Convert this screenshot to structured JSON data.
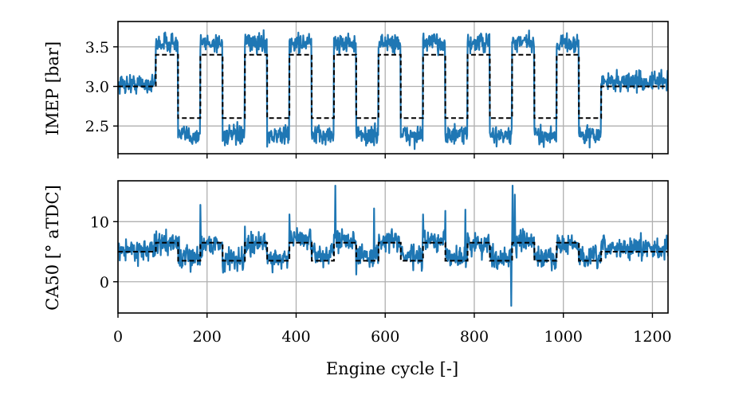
{
  "chart_data": [
    {
      "type": "line",
      "panel": "top",
      "ylabel": "IMEP [bar]",
      "xlim": [
        0,
        1235
      ],
      "ylim": [
        2.15,
        3.82
      ],
      "yticks": [
        2.5,
        3.0,
        3.5
      ],
      "ytick_labels": [
        "2.5",
        "3.0",
        "3.5"
      ],
      "xticks": [
        0,
        200,
        400,
        600,
        800,
        1000,
        1200
      ],
      "grid": true,
      "series": [
        {
          "role": "reference",
          "color": "#000000",
          "style": "dashed",
          "steps": [
            {
              "x0": 0,
              "x1": 85,
              "y": 3.0
            },
            {
              "x0": 85,
              "x1": 135,
              "y": 3.4
            },
            {
              "x0": 135,
              "x1": 185,
              "y": 2.6
            },
            {
              "x0": 185,
              "x1": 235,
              "y": 3.4
            },
            {
              "x0": 235,
              "x1": 285,
              "y": 2.6
            },
            {
              "x0": 285,
              "x1": 335,
              "y": 3.4
            },
            {
              "x0": 335,
              "x1": 385,
              "y": 2.6
            },
            {
              "x0": 385,
              "x1": 435,
              "y": 3.4
            },
            {
              "x0": 435,
              "x1": 485,
              "y": 2.6
            },
            {
              "x0": 485,
              "x1": 535,
              "y": 3.4
            },
            {
              "x0": 535,
              "x1": 585,
              "y": 2.6
            },
            {
              "x0": 585,
              "x1": 635,
              "y": 3.4
            },
            {
              "x0": 635,
              "x1": 685,
              "y": 2.6
            },
            {
              "x0": 685,
              "x1": 735,
              "y": 3.4
            },
            {
              "x0": 735,
              "x1": 785,
              "y": 2.6
            },
            {
              "x0": 785,
              "x1": 835,
              "y": 3.4
            },
            {
              "x0": 835,
              "x1": 885,
              "y": 2.6
            },
            {
              "x0": 885,
              "x1": 935,
              "y": 3.4
            },
            {
              "x0": 935,
              "x1": 985,
              "y": 2.6
            },
            {
              "x0": 985,
              "x1": 1035,
              "y": 3.4
            },
            {
              "x0": 1035,
              "x1": 1085,
              "y": 2.6
            },
            {
              "x0": 1085,
              "x1": 1235,
              "y": 3.0
            }
          ]
        },
        {
          "role": "measured",
          "color": "#1f77b4",
          "style": "solid",
          "noise": 0.06,
          "levels": [
            {
              "x0": 0,
              "x1": 85,
              "y": 3.03
            },
            {
              "x0": 85,
              "x1": 135,
              "y": 3.55
            },
            {
              "x0": 135,
              "x1": 185,
              "y": 2.38
            },
            {
              "x0": 185,
              "x1": 235,
              "y": 3.55
            },
            {
              "x0": 235,
              "x1": 285,
              "y": 2.38
            },
            {
              "x0": 285,
              "x1": 335,
              "y": 3.55
            },
            {
              "x0": 335,
              "x1": 385,
              "y": 2.38
            },
            {
              "x0": 385,
              "x1": 435,
              "y": 3.55
            },
            {
              "x0": 435,
              "x1": 485,
              "y": 2.38
            },
            {
              "x0": 485,
              "x1": 535,
              "y": 3.55
            },
            {
              "x0": 535,
              "x1": 585,
              "y": 2.38
            },
            {
              "x0": 585,
              "x1": 635,
              "y": 3.55
            },
            {
              "x0": 635,
              "x1": 685,
              "y": 2.38
            },
            {
              "x0": 685,
              "x1": 735,
              "y": 3.55
            },
            {
              "x0": 735,
              "x1": 785,
              "y": 2.38
            },
            {
              "x0": 785,
              "x1": 835,
              "y": 3.55
            },
            {
              "x0": 835,
              "x1": 885,
              "y": 2.38
            },
            {
              "x0": 885,
              "x1": 935,
              "y": 3.55
            },
            {
              "x0": 935,
              "x1": 985,
              "y": 2.38
            },
            {
              "x0": 985,
              "x1": 1035,
              "y": 3.55
            },
            {
              "x0": 1035,
              "x1": 1085,
              "y": 2.38
            },
            {
              "x0": 1085,
              "x1": 1235,
              "y": 3.06
            }
          ]
        }
      ]
    },
    {
      "type": "line",
      "panel": "bottom",
      "ylabel": "CA50 [° aTDC]",
      "xlabel": "Engine cycle [-]",
      "xlim": [
        0,
        1235
      ],
      "ylim": [
        -5.2,
        16.8
      ],
      "yticks": [
        0,
        10
      ],
      "ytick_labels": [
        "0",
        "10"
      ],
      "xticks": [
        0,
        200,
        400,
        600,
        800,
        1000,
        1200
      ],
      "xtick_labels": [
        "0",
        "200",
        "400",
        "600",
        "800",
        "1000",
        "1200"
      ],
      "grid": true,
      "series": [
        {
          "role": "reference",
          "color": "#000000",
          "style": "dashed",
          "steps": [
            {
              "x0": 0,
              "x1": 85,
              "y": 5.0
            },
            {
              "x0": 85,
              "x1": 135,
              "y": 6.5
            },
            {
              "x0": 135,
              "x1": 185,
              "y": 3.5
            },
            {
              "x0": 185,
              "x1": 235,
              "y": 6.5
            },
            {
              "x0": 235,
              "x1": 285,
              "y": 3.5
            },
            {
              "x0": 285,
              "x1": 335,
              "y": 6.5
            },
            {
              "x0": 335,
              "x1": 385,
              "y": 3.5
            },
            {
              "x0": 385,
              "x1": 435,
              "y": 6.5
            },
            {
              "x0": 435,
              "x1": 485,
              "y": 3.5
            },
            {
              "x0": 485,
              "x1": 535,
              "y": 6.5
            },
            {
              "x0": 535,
              "x1": 585,
              "y": 3.5
            },
            {
              "x0": 585,
              "x1": 635,
              "y": 6.5
            },
            {
              "x0": 635,
              "x1": 685,
              "y": 3.5
            },
            {
              "x0": 685,
              "x1": 735,
              "y": 6.5
            },
            {
              "x0": 735,
              "x1": 785,
              "y": 3.5
            },
            {
              "x0": 785,
              "x1": 835,
              "y": 6.5
            },
            {
              "x0": 835,
              "x1": 885,
              "y": 3.5
            },
            {
              "x0": 885,
              "x1": 935,
              "y": 6.5
            },
            {
              "x0": 935,
              "x1": 985,
              "y": 3.5
            },
            {
              "x0": 985,
              "x1": 1035,
              "y": 6.5
            },
            {
              "x0": 1035,
              "x1": 1085,
              "y": 3.5
            },
            {
              "x0": 1085,
              "x1": 1235,
              "y": 5.0
            }
          ]
        },
        {
          "role": "measured",
          "color": "#1f77b4",
          "style": "solid",
          "noise": 0.9,
          "levels": [
            {
              "x0": 0,
              "x1": 85,
              "y": 5.3
            },
            {
              "x0": 85,
              "x1": 135,
              "y": 6.4
            },
            {
              "x0": 135,
              "x1": 185,
              "y": 4.0
            },
            {
              "x0": 185,
              "x1": 235,
              "y": 6.3
            },
            {
              "x0": 235,
              "x1": 285,
              "y": 3.8
            },
            {
              "x0": 285,
              "x1": 335,
              "y": 6.2
            },
            {
              "x0": 335,
              "x1": 385,
              "y": 4.0
            },
            {
              "x0": 385,
              "x1": 435,
              "y": 7.2
            },
            {
              "x0": 435,
              "x1": 485,
              "y": 4.5
            },
            {
              "x0": 485,
              "x1": 535,
              "y": 7.3
            },
            {
              "x0": 535,
              "x1": 585,
              "y": 4.2
            },
            {
              "x0": 585,
              "x1": 635,
              "y": 6.9
            },
            {
              "x0": 635,
              "x1": 685,
              "y": 4.2
            },
            {
              "x0": 685,
              "x1": 735,
              "y": 6.7
            },
            {
              "x0": 735,
              "x1": 785,
              "y": 4.2
            },
            {
              "x0": 785,
              "x1": 835,
              "y": 6.3
            },
            {
              "x0": 835,
              "x1": 885,
              "y": 4.1
            },
            {
              "x0": 885,
              "x1": 935,
              "y": 6.6
            },
            {
              "x0": 935,
              "x1": 985,
              "y": 4.0
            },
            {
              "x0": 985,
              "x1": 1035,
              "y": 6.1
            },
            {
              "x0": 1035,
              "x1": 1085,
              "y": 3.9
            },
            {
              "x0": 1085,
              "x1": 1235,
              "y": 5.6
            }
          ],
          "spikes": [
            {
              "x": 137,
              "y": 7.5
            },
            {
              "x": 185,
              "y": 12.8
            },
            {
              "x": 236,
              "y": 1.5
            },
            {
              "x": 285,
              "y": 9.2
            },
            {
              "x": 385,
              "y": 11.2
            },
            {
              "x": 488,
              "y": 16.0
            },
            {
              "x": 535,
              "y": 1.2
            },
            {
              "x": 575,
              "y": 12.2
            },
            {
              "x": 685,
              "y": 11.2
            },
            {
              "x": 735,
              "y": 11.8
            },
            {
              "x": 780,
              "y": 12.0
            },
            {
              "x": 883,
              "y": -4.0
            },
            {
              "x": 886,
              "y": 16.0
            },
            {
              "x": 891,
              "y": 14.5
            },
            {
              "x": 895,
              "y": 4.0
            }
          ]
        }
      ]
    }
  ]
}
